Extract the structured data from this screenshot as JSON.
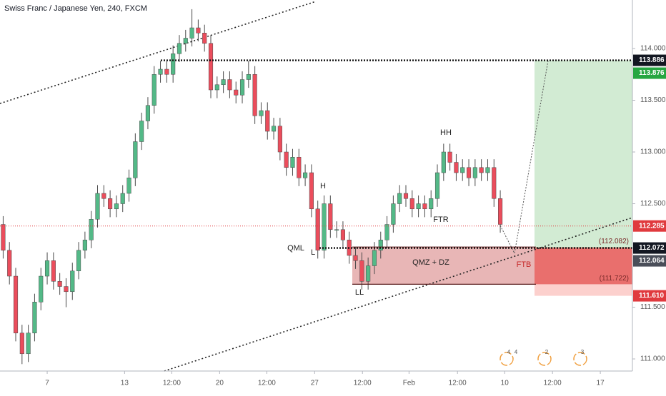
{
  "chart_data": {
    "type": "candlestick",
    "title": "Swiss Franc / Japanese Yen, 240, FXCM",
    "up_color": "#53b987",
    "down_color": "#eb4d5c",
    "open": [
      112.3,
      112.05,
      111.8,
      111.25,
      111.05,
      111.25,
      111.55,
      111.8,
      111.95,
      111.75,
      111.7,
      111.65,
      111.85,
      112.05,
      112.15,
      112.35,
      112.6,
      112.55,
      112.45,
      112.5,
      112.6,
      112.75,
      113.1,
      113.3,
      113.45,
      113.75,
      113.8,
      113.75,
      113.95,
      114.05,
      114.1,
      114.2,
      114.15,
      114.05,
      113.6,
      113.65,
      113.7,
      113.6,
      113.55,
      113.7,
      113.75,
      113.35,
      113.4,
      113.2,
      113.25,
      113.0,
      112.85,
      112.95,
      112.75,
      112.8,
      112.45,
      112.05,
      112.5,
      112.25,
      112.25,
      112.15,
      112.0,
      111.95,
      111.75,
      111.9,
      112.05,
      112.15,
      112.3,
      112.5,
      112.6,
      112.55,
      112.45,
      112.5,
      112.45,
      112.55,
      112.8,
      113.0,
      112.9,
      112.8,
      112.85,
      112.75,
      112.85,
      112.8,
      112.85,
      112.55
    ],
    "high": [
      112.38,
      112.13,
      111.88,
      111.33,
      111.33,
      111.63,
      111.88,
      112.03,
      112.03,
      111.83,
      111.78,
      111.93,
      112.13,
      112.23,
      112.43,
      112.68,
      112.68,
      112.63,
      112.58,
      112.68,
      112.83,
      113.18,
      113.38,
      113.53,
      113.83,
      113.88,
      113.88,
      114.03,
      114.13,
      114.18,
      114.38,
      114.28,
      114.23,
      114.13,
      113.73,
      113.78,
      113.78,
      113.68,
      113.78,
      113.88,
      113.83,
      113.48,
      113.48,
      113.33,
      113.33,
      113.08,
      113.03,
      113.03,
      112.88,
      112.88,
      112.53,
      112.58,
      112.58,
      112.33,
      112.33,
      112.23,
      112.08,
      112.03,
      111.98,
      112.13,
      112.23,
      112.38,
      112.58,
      112.68,
      112.68,
      112.63,
      112.58,
      112.58,
      112.63,
      112.88,
      113.08,
      113.08,
      112.98,
      112.93,
      112.93,
      112.93,
      112.93,
      112.93,
      112.93,
      112.63
    ],
    "low": [
      111.97,
      111.72,
      111.17,
      110.95,
      110.97,
      111.17,
      111.47,
      111.72,
      111.67,
      111.62,
      111.5,
      111.57,
      111.77,
      111.97,
      112.07,
      112.27,
      112.47,
      112.37,
      112.37,
      112.42,
      112.52,
      112.67,
      113.02,
      113.22,
      113.37,
      113.67,
      113.67,
      113.67,
      113.87,
      113.97,
      114.02,
      114.07,
      113.97,
      113.52,
      113.52,
      113.57,
      113.52,
      113.47,
      113.47,
      113.62,
      113.27,
      113.27,
      113.12,
      113.12,
      112.92,
      112.77,
      112.77,
      112.67,
      112.67,
      112.37,
      111.97,
      111.97,
      112.17,
      112.17,
      112.07,
      111.92,
      111.87,
      111.67,
      111.67,
      111.82,
      111.97,
      112.07,
      112.22,
      112.42,
      112.47,
      112.37,
      112.37,
      112.37,
      112.37,
      112.47,
      112.72,
      112.82,
      112.72,
      112.72,
      112.67,
      112.67,
      112.72,
      112.72,
      112.47,
      112.22
    ],
    "close": [
      112.05,
      111.8,
      111.25,
      111.05,
      111.25,
      111.55,
      111.8,
      111.95,
      111.75,
      111.7,
      111.65,
      111.85,
      112.05,
      112.15,
      112.35,
      112.6,
      112.55,
      112.45,
      112.5,
      112.6,
      112.75,
      113.1,
      113.3,
      113.45,
      113.75,
      113.8,
      113.75,
      113.95,
      114.05,
      114.1,
      114.2,
      114.15,
      114.05,
      113.6,
      113.65,
      113.7,
      113.6,
      113.55,
      113.7,
      113.75,
      113.35,
      113.4,
      113.2,
      113.25,
      113.0,
      112.85,
      112.95,
      112.75,
      112.8,
      112.45,
      112.05,
      112.5,
      112.25,
      112.25,
      112.15,
      112.0,
      111.95,
      111.75,
      111.9,
      112.05,
      112.15,
      112.3,
      112.5,
      112.6,
      112.55,
      112.45,
      112.5,
      112.45,
      112.55,
      112.8,
      113.0,
      112.9,
      112.8,
      112.85,
      112.75,
      112.85,
      112.8,
      112.85,
      112.55,
      112.3
    ],
    "xlim": [
      -0.5,
      100
    ],
    "xticks": [
      {
        "value": 7.0,
        "label": "7"
      },
      {
        "value": 19.3,
        "label": "13"
      },
      {
        "value": 26.8,
        "label": "12:00"
      },
      {
        "value": 34.4,
        "label": "20"
      },
      {
        "value": 41.9,
        "label": "12:00"
      },
      {
        "value": 49.5,
        "label": "27"
      },
      {
        "value": 57.1,
        "label": "12:00"
      },
      {
        "value": 64.5,
        "label": "Feb"
      },
      {
        "value": 72.2,
        "label": "12:00"
      },
      {
        "value": 79.7,
        "label": "10"
      },
      {
        "value": 87.3,
        "label": "12:00"
      },
      {
        "value": 94.9,
        "label": "17"
      }
    ],
    "ylim": [
      110.883,
      114.469
    ],
    "yticks": [
      {
        "value": 111.0,
        "label": "111.000"
      },
      {
        "value": 111.5,
        "label": "111.500"
      },
      {
        "value": 112.5,
        "label": "112.500"
      },
      {
        "value": 113.0,
        "label": "113.000"
      },
      {
        "value": 113.5,
        "label": "113.500"
      },
      {
        "value": 114.0,
        "label": "114.000"
      }
    ],
    "price_tags": [
      {
        "value": 113.886,
        "label": "113.886",
        "color": "#131722"
      },
      {
        "value": 113.876,
        "label": "113.876",
        "color": "#26a641"
      },
      {
        "value": 112.285,
        "label": "112.285",
        "color": "#e03a3e"
      },
      {
        "value": 112.072,
        "label": "112.072",
        "color": "#131722"
      },
      {
        "value": 112.064,
        "label": "112.064",
        "color": "#4a4e59"
      },
      {
        "value": 111.61,
        "label": "111.610",
        "color": "#e03a3e"
      }
    ],
    "zone_levels": [
      {
        "value": 112.082,
        "label": "(112.082)"
      },
      {
        "value": 111.722,
        "label": "(111.722)"
      }
    ],
    "annotations": [
      "HH",
      "H",
      "QML",
      "L",
      "LL",
      "FTR",
      "QMZ + DZ",
      "FTB"
    ],
    "event_badges": [
      "4",
      "4",
      "2",
      "3"
    ]
  }
}
